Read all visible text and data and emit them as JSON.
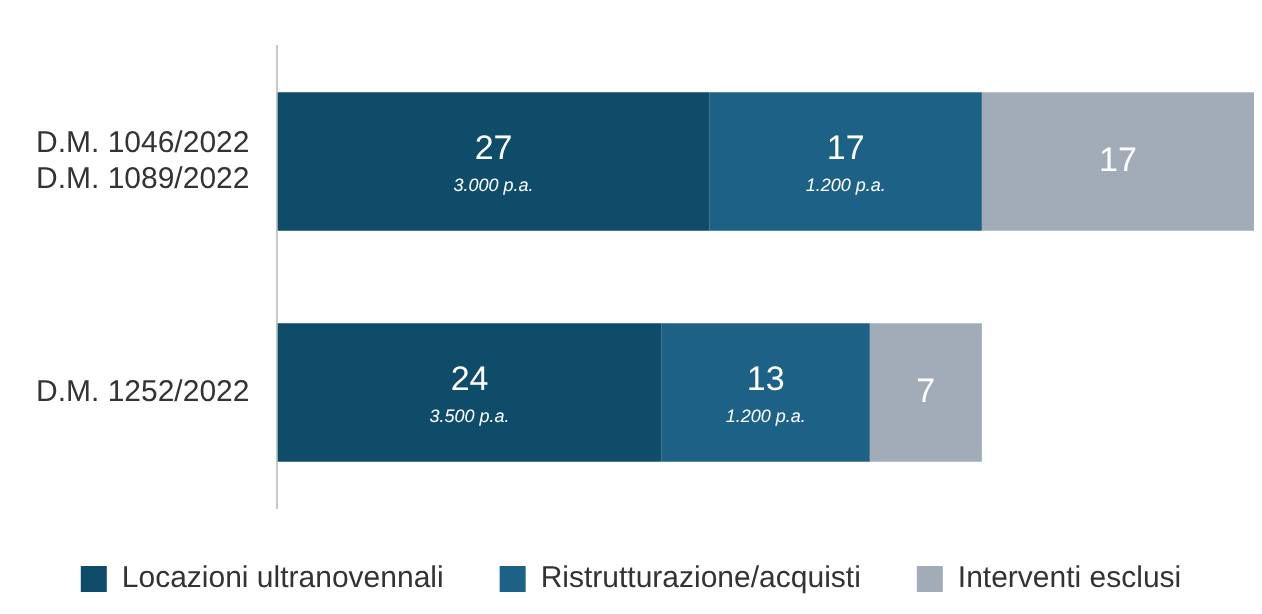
{
  "chart_data": {
    "type": "bar",
    "orientation": "horizontal",
    "stacked": true,
    "categories": [
      "D.M. 1046/2022\nD.M. 1089/2022",
      "D.M. 1252/2022"
    ],
    "series": [
      {
        "name": "Locazioni ultranovennali",
        "color": "#0e4c6a",
        "values": [
          27,
          24
        ],
        "value_labels": [
          "27\n3.000 p.a.",
          "24\n3.500 p.a."
        ]
      },
      {
        "name": "Ristrutturazione/acquisti",
        "color": "#1d6286",
        "values": [
          17,
          13
        ],
        "value_labels": [
          "17\n1.200 p.a.",
          "13\n1.200 p.a."
        ]
      },
      {
        "name": "Interventi esclusi",
        "color": "#a2acb8",
        "values": [
          17,
          7
        ],
        "value_labels": [
          "17",
          "7"
        ]
      }
    ],
    "legend": "bottom"
  }
}
